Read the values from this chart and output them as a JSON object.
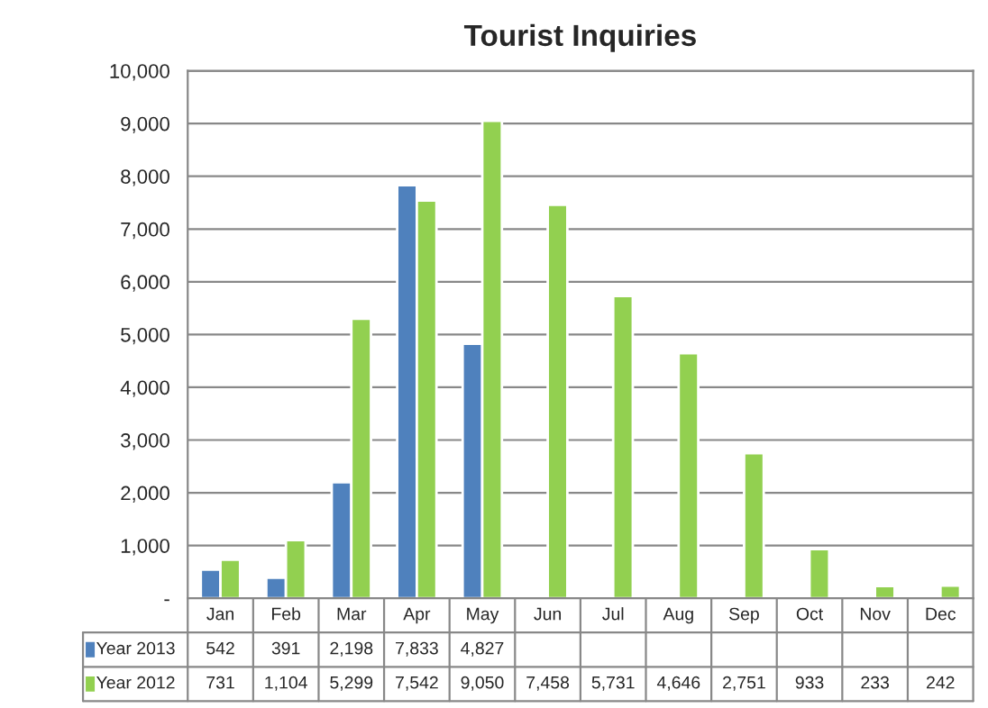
{
  "chart_data": {
    "type": "bar",
    "title": "Tourist Inquiries",
    "categories": [
      "Jan",
      "Feb",
      "Mar",
      "Apr",
      "May",
      "Jun",
      "Jul",
      "Aug",
      "Sep",
      "Oct",
      "Nov",
      "Dec"
    ],
    "series": [
      {
        "name": "Year 2013",
        "color": "#4f81bd",
        "values": [
          542,
          391,
          2198,
          7833,
          4827,
          null,
          null,
          null,
          null,
          null,
          null,
          null
        ],
        "value_labels": [
          "542",
          "391",
          "2,198",
          "7,833",
          "4,827",
          null,
          null,
          null,
          null,
          null,
          null,
          null
        ]
      },
      {
        "name": "Year 2012",
        "color": "#92d050",
        "values": [
          731,
          1104,
          5299,
          7542,
          9050,
          7458,
          5731,
          4646,
          2751,
          933,
          233,
          242
        ],
        "value_labels": [
          "731",
          "1,104",
          "5,299",
          "7,542",
          "9,050",
          "7,458",
          "5,731",
          "4,646",
          "2,751",
          "933",
          "233",
          "242"
        ]
      }
    ],
    "ylim": [
      0,
      10000
    ],
    "yticks": [
      {
        "value": 0,
        "label": "-"
      },
      {
        "value": 1000,
        "label": "1,000"
      },
      {
        "value": 2000,
        "label": "2,000"
      },
      {
        "value": 3000,
        "label": "3,000"
      },
      {
        "value": 4000,
        "label": "4,000"
      },
      {
        "value": 5000,
        "label": "5,000"
      },
      {
        "value": 6000,
        "label": "6,000"
      },
      {
        "value": 7000,
        "label": "7,000"
      },
      {
        "value": 8000,
        "label": "8,000"
      },
      {
        "value": 9000,
        "label": "9,000"
      },
      {
        "value": 10000,
        "label": "10,000"
      }
    ],
    "grid": "y",
    "legend": "bottom"
  }
}
